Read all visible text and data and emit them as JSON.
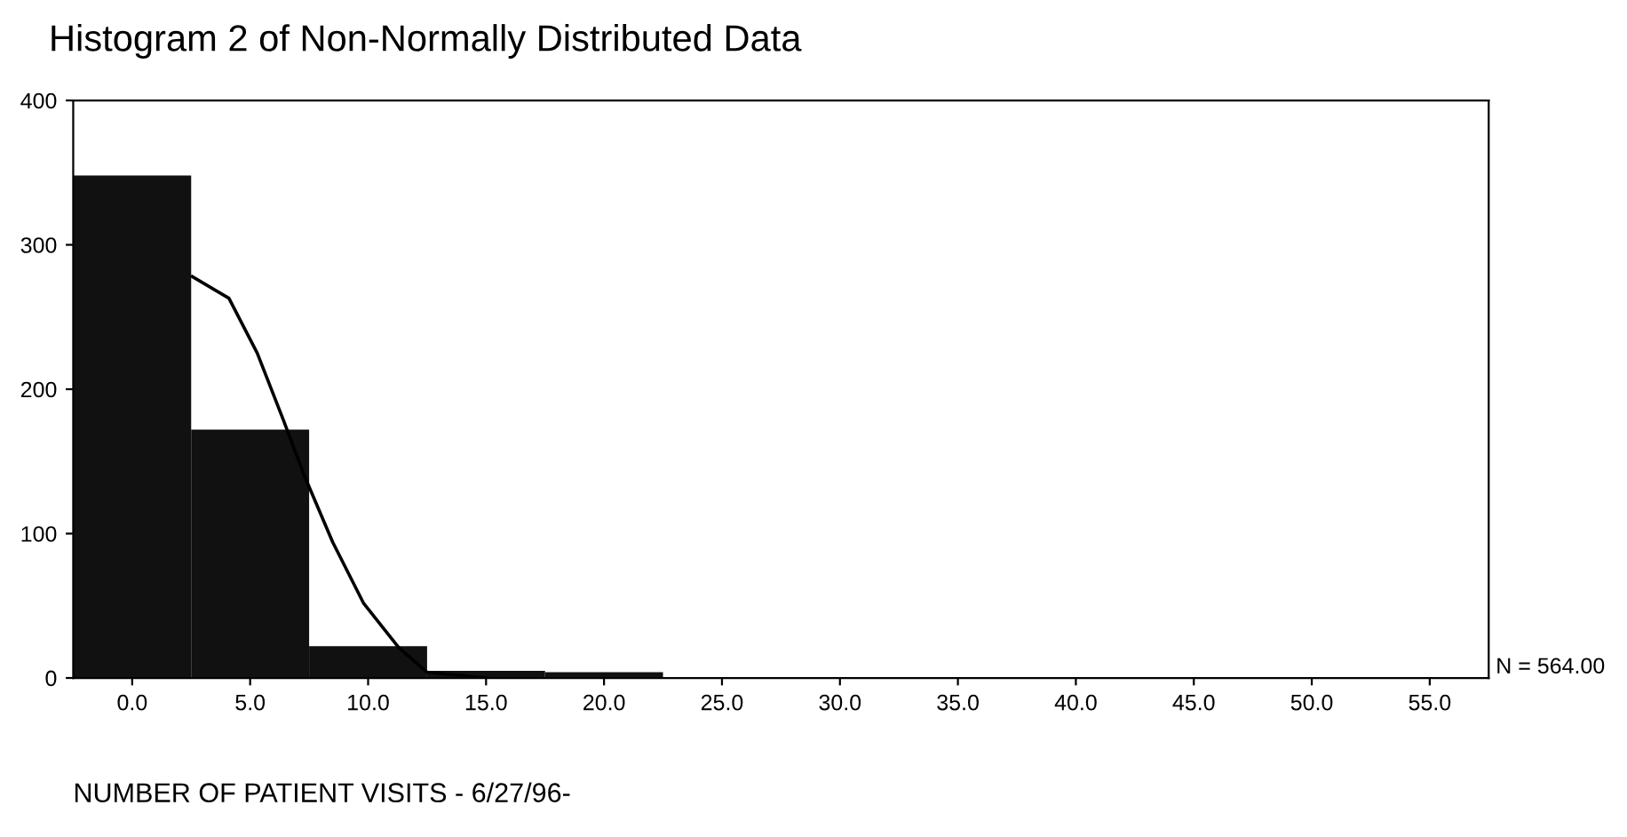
{
  "chart_data": {
    "type": "histogram",
    "title": "Histogram 2 of Non-Normally Distributed Data",
    "xlabel": "NUMBER OF PATIENT VISITS - 6/27/96-",
    "bins": [
      -2.5,
      2.5,
      7.5,
      12.5,
      17.5,
      22.5,
      27.5,
      32.5,
      37.5,
      42.5,
      47.5,
      52.5,
      57.5
    ],
    "values": [
      348,
      172,
      22,
      5,
      4,
      0,
      0,
      0,
      0,
      0,
      0,
      0
    ],
    "color": "#111111",
    "series": [
      {
        "type": "line",
        "color": "#000000",
        "x": [
          2.55,
          4.1,
          5.3,
          6.4,
          7.3,
          8.5,
          9.8,
          11.3,
          12.5,
          15
        ],
        "values": [
          278,
          263,
          225,
          179,
          140,
          94,
          52,
          21,
          4,
          0
        ]
      }
    ],
    "xlim": [
      -2.5,
      57.5
    ],
    "ylim": [
      0,
      400
    ],
    "xticks": [
      {
        "value": 0,
        "label": "0.0"
      },
      {
        "value": 5,
        "label": "5.0"
      },
      {
        "value": 10,
        "label": "10.0"
      },
      {
        "value": 15,
        "label": "15.0"
      },
      {
        "value": 20,
        "label": "20.0"
      },
      {
        "value": 25,
        "label": "25.0"
      },
      {
        "value": 30,
        "label": "30.0"
      },
      {
        "value": 35,
        "label": "35.0"
      },
      {
        "value": 40,
        "label": "40.0"
      },
      {
        "value": 45,
        "label": "45.0"
      },
      {
        "value": 50,
        "label": "50.0"
      },
      {
        "value": 55,
        "label": "55.0"
      }
    ],
    "yticks": [
      0,
      100,
      200,
      300,
      400
    ],
    "annotations": [
      "N = 564.00"
    ],
    "grid": false,
    "legend": false
  }
}
